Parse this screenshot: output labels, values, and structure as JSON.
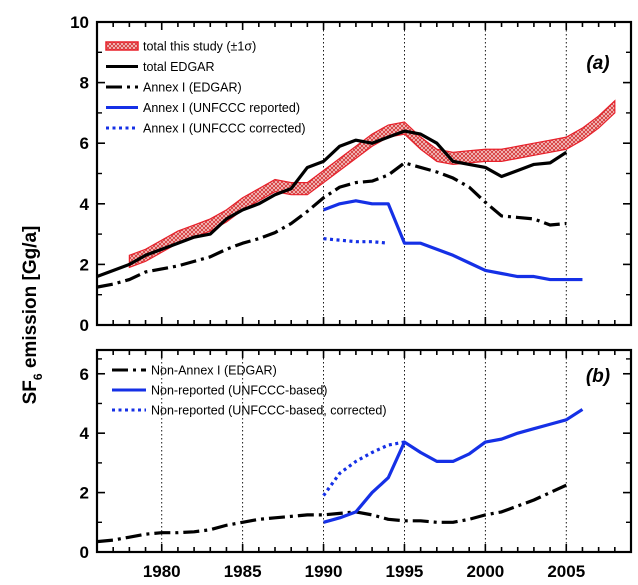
{
  "ylabel_main": "SF",
  "ylabel_sub": "6",
  "ylabel_rest": " emission [Gg/a]",
  "colors": {
    "red": "#e8202a",
    "black": "#000000",
    "blue": "#1530e6",
    "band_fill": "#f6c9c9"
  },
  "chart_data": [
    {
      "type": "line",
      "panel": "(a)",
      "xlim": [
        1976,
        2009
      ],
      "ylim": [
        0,
        10
      ],
      "yticks": [
        "0",
        "2",
        "4",
        "6",
        "8",
        "10"
      ],
      "xticks": [
        "1980",
        "1985",
        "1990",
        "1995",
        "2000",
        "2005"
      ],
      "xtick_values": [
        1980,
        1985,
        1990,
        1995,
        2000,
        2005
      ],
      "legend_position": "top-left",
      "series": [
        {
          "name": "total this study (±1σ)",
          "color": "#e8202a",
          "style": "band",
          "x": [
            1978,
            1979,
            1980,
            1981,
            1982,
            1983,
            1984,
            1985,
            1986,
            1987,
            1988,
            1989,
            1990,
            1991,
            1992,
            1993,
            1994,
            1995,
            1996,
            1997,
            1998,
            1999,
            2000,
            2001,
            2002,
            2003,
            2004,
            2005,
            2006,
            2007,
            2008
          ],
          "values": [
            2.1,
            2.3,
            2.6,
            2.9,
            3.1,
            3.3,
            3.6,
            4.0,
            4.3,
            4.6,
            4.5,
            4.5,
            4.9,
            5.3,
            5.7,
            6.1,
            6.4,
            6.5,
            6.0,
            5.6,
            5.5,
            5.55,
            5.6,
            5.6,
            5.7,
            5.8,
            5.9,
            6.0,
            6.3,
            6.7,
            7.2
          ],
          "sigma": 0.2
        },
        {
          "name": "total EDGAR",
          "color": "#000000",
          "style": "solid",
          "x": [
            1976,
            1977,
            1978,
            1979,
            1980,
            1981,
            1982,
            1983,
            1984,
            1985,
            1986,
            1987,
            1988,
            1989,
            1990,
            1991,
            1992,
            1993,
            1994,
            1995,
            1996,
            1997,
            1998,
            1999,
            2000,
            2001,
            2002,
            2003,
            2004,
            2005
          ],
          "values": [
            1.6,
            1.8,
            2.0,
            2.3,
            2.5,
            2.7,
            2.9,
            3.0,
            3.5,
            3.8,
            4.0,
            4.3,
            4.5,
            5.2,
            5.4,
            5.9,
            6.1,
            6.0,
            6.2,
            6.4,
            6.3,
            6.0,
            5.4,
            5.3,
            5.2,
            4.9,
            5.1,
            5.3,
            5.35,
            5.7
          ],
          "width": 3.2
        },
        {
          "name": "Annex I (EDGAR)",
          "color": "#000000",
          "style": "dashdot",
          "x": [
            1976,
            1977,
            1978,
            1979,
            1980,
            1981,
            1982,
            1983,
            1984,
            1985,
            1986,
            1987,
            1988,
            1989,
            1990,
            1991,
            1992,
            1993,
            1994,
            1995,
            1996,
            1997,
            1998,
            1999,
            2000,
            2001,
            2002,
            2003,
            2004,
            2005
          ],
          "values": [
            1.25,
            1.35,
            1.5,
            1.75,
            1.85,
            1.95,
            2.1,
            2.25,
            2.5,
            2.7,
            2.85,
            3.05,
            3.35,
            3.75,
            4.2,
            4.55,
            4.7,
            4.75,
            4.95,
            5.35,
            5.2,
            5.05,
            4.85,
            4.55,
            4.05,
            3.6,
            3.55,
            3.5,
            3.3,
            3.35
          ],
          "width": 3.2
        },
        {
          "name": "Annex I (UNFCCC reported)",
          "color": "#1530e6",
          "style": "solid",
          "x": [
            1990,
            1991,
            1992,
            1993,
            1994,
            1995,
            1996,
            1997,
            1998,
            1999,
            2000,
            2001,
            2002,
            2003,
            2004,
            2005,
            2006
          ],
          "values": [
            3.8,
            4.0,
            4.1,
            4.0,
            4.0,
            2.7,
            2.7,
            2.5,
            2.3,
            2.05,
            1.8,
            1.7,
            1.6,
            1.6,
            1.5,
            1.5,
            1.5
          ],
          "width": 3.2
        },
        {
          "name": "Annex I (UNFCCC corrected)",
          "color": "#1530e6",
          "style": "dotted",
          "x": [
            1990,
            1991,
            1992,
            1993,
            1994
          ],
          "values": [
            2.85,
            2.8,
            2.75,
            2.75,
            2.7
          ],
          "width": 3.2
        }
      ]
    },
    {
      "type": "line",
      "panel": "(b)",
      "xlim": [
        1976,
        2009
      ],
      "ylim": [
        0,
        6.8
      ],
      "yticks": [
        "0",
        "2",
        "4",
        "6"
      ],
      "ytick_values": [
        0,
        2,
        4,
        6
      ],
      "xticks": [
        "1980",
        "1985",
        "1990",
        "1995",
        "2000",
        "2005"
      ],
      "xtick_values": [
        1980,
        1985,
        1990,
        1995,
        2000,
        2005
      ],
      "legend_position": "top-left",
      "series": [
        {
          "name": "Non-Annex I (EDGAR)",
          "color": "#000000",
          "style": "dashdot",
          "x": [
            1976,
            1977,
            1978,
            1979,
            1980,
            1981,
            1982,
            1983,
            1984,
            1985,
            1986,
            1987,
            1988,
            1989,
            1990,
            1991,
            1992,
            1993,
            1994,
            1995,
            1996,
            1997,
            1998,
            1999,
            2000,
            2001,
            2002,
            2003,
            2004,
            2005
          ],
          "values": [
            0.35,
            0.4,
            0.5,
            0.6,
            0.65,
            0.65,
            0.68,
            0.75,
            0.9,
            1.0,
            1.1,
            1.15,
            1.2,
            1.25,
            1.25,
            1.3,
            1.35,
            1.25,
            1.1,
            1.05,
            1.05,
            1.0,
            1.0,
            1.1,
            1.25,
            1.35,
            1.55,
            1.75,
            2.0,
            2.25
          ],
          "width": 3.2
        },
        {
          "name": "Non-reported (UNFCCC-based)",
          "color": "#1530e6",
          "style": "solid",
          "x": [
            1990,
            1991,
            1992,
            1993,
            1994,
            1995,
            1996,
            1997,
            1998,
            1999,
            2000,
            2001,
            2002,
            2003,
            2004,
            2005,
            2006
          ],
          "values": [
            1.0,
            1.15,
            1.35,
            2.0,
            2.5,
            3.7,
            3.35,
            3.05,
            3.05,
            3.3,
            3.7,
            3.8,
            4.0,
            4.15,
            4.3,
            4.45,
            4.8
          ],
          "width": 3.2
        },
        {
          "name": "Non-reported (UNFCCC-based, corrected)",
          "color": "#1530e6",
          "style": "dotted",
          "x": [
            1990,
            1991,
            1992,
            1993,
            1994,
            1995
          ],
          "values": [
            1.9,
            2.65,
            3.05,
            3.35,
            3.6,
            3.7
          ],
          "width": 3.2
        }
      ]
    }
  ]
}
